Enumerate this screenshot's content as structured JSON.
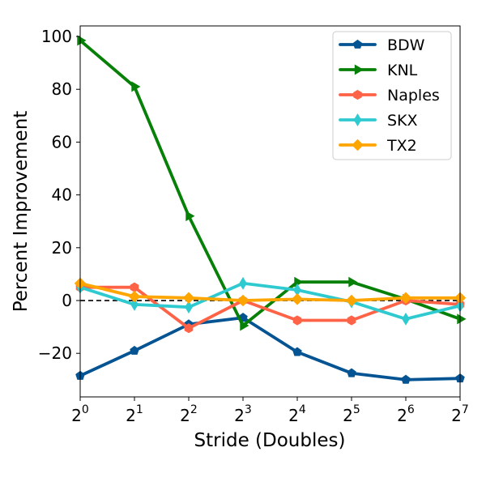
{
  "chart_data": {
    "type": "line",
    "xlabel": "Stride (Doubles)",
    "ylabel": "Percent Improvement",
    "x_ticks": [
      {
        "base": "2",
        "exp": "0"
      },
      {
        "base": "2",
        "exp": "1"
      },
      {
        "base": "2",
        "exp": "2"
      },
      {
        "base": "2",
        "exp": "3"
      },
      {
        "base": "2",
        "exp": "4"
      },
      {
        "base": "2",
        "exp": "5"
      },
      {
        "base": "2",
        "exp": "6"
      },
      {
        "base": "2",
        "exp": "7"
      }
    ],
    "x": [
      1,
      2,
      4,
      8,
      16,
      32,
      64,
      128
    ],
    "x_scale": "log2",
    "ylim": [
      -36.5,
      104
    ],
    "y_ticks": [
      "−20",
      "0",
      "20",
      "40",
      "60",
      "80",
      "100"
    ],
    "y_tick_values": [
      -20,
      0,
      20,
      40,
      60,
      80,
      100
    ],
    "reference_line": {
      "y": 0,
      "style": "dashed",
      "color": "#000000"
    },
    "legend_position": "upper right",
    "grid": false,
    "series": [
      {
        "name": "BDW",
        "color": "#045493",
        "marker": "pentagon",
        "values": [
          -28.5,
          -19,
          -9,
          -6.5,
          -19.5,
          -27.5,
          -30,
          -29.5
        ]
      },
      {
        "name": "KNL",
        "color": "#078007",
        "marker": "triangle-right",
        "values": [
          98.5,
          81,
          32,
          -9.5,
          7,
          7,
          0.5,
          -7
        ]
      },
      {
        "name": "Naples",
        "color": "#ff6347",
        "marker": "hexagon",
        "values": [
          5,
          5,
          -10.5,
          0,
          -7.5,
          -7.5,
          0,
          -1.5
        ]
      },
      {
        "name": "SKX",
        "color": "#2ecad0",
        "marker": "thin-diamond",
        "values": [
          5,
          -1.5,
          -2.5,
          6.5,
          4,
          -0.5,
          -7,
          -2
        ]
      },
      {
        "name": "TX2",
        "color": "#ffa500",
        "marker": "diamond",
        "values": [
          6.5,
          1.5,
          1,
          0,
          0.5,
          0,
          1,
          1
        ]
      }
    ]
  }
}
